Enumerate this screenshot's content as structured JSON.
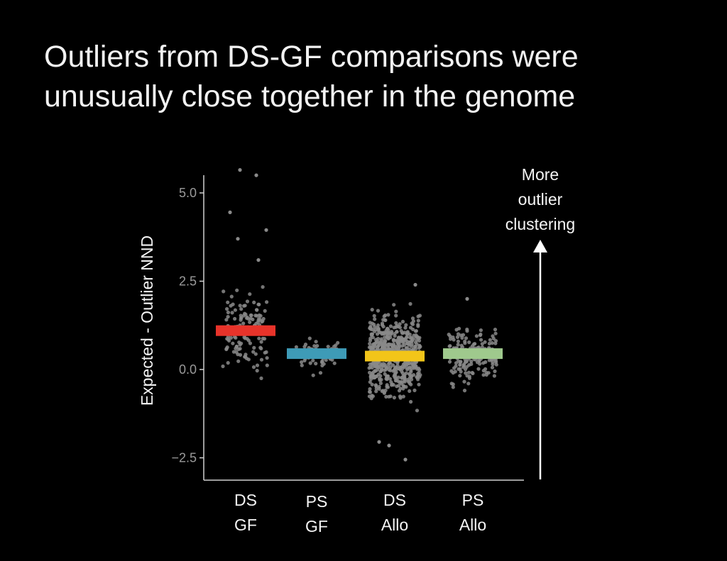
{
  "title": {
    "line1": "Outliers from DS-GF comparisons were",
    "line2": "unusually close together in the genome"
  },
  "annotation": {
    "lines": [
      "More",
      "outlier",
      "clustering"
    ],
    "arrow": "up"
  },
  "chart_data": {
    "type": "scatter",
    "subtype": "jittered strip plot with median bars",
    "ylabel": "Expected - Outlier NND",
    "xlabel": "",
    "ylim": [
      -2.8,
      5.6
    ],
    "yticks": [
      -2.5,
      0.0,
      2.5,
      5.0
    ],
    "ytick_labels": [
      "−2.5",
      "0.0",
      "2.5",
      "5.0"
    ],
    "grid": false,
    "categories": [
      {
        "id": "DS-GF",
        "label": [
          "DS",
          "GF"
        ],
        "bar_value": 1.1,
        "bar_color": "#e8332a",
        "n_points": 150,
        "range": [
          -0.7,
          5.7
        ],
        "highlights": [
          5.65,
          5.5,
          4.45,
          3.95,
          3.7,
          3.1
        ]
      },
      {
        "id": "PS-GF",
        "label": [
          "PS",
          "GF"
        ],
        "bar_value": 0.45,
        "bar_color": "#3e9bb7",
        "n_points": 60,
        "range": [
          -0.25,
          1.25
        ],
        "highlights": []
      },
      {
        "id": "DS-Allo",
        "label": [
          "DS",
          "Allo"
        ],
        "bar_value": 0.38,
        "bar_color": "#f2c519",
        "n_points": 650,
        "range": [
          -2.6,
          2.5
        ],
        "highlights": [
          -2.15,
          -2.55,
          -2.05,
          2.4
        ]
      },
      {
        "id": "PS-Allo",
        "label": [
          "PS",
          "Allo"
        ],
        "bar_value": 0.45,
        "bar_color": "#9fc98d",
        "n_points": 180,
        "range": [
          -0.65,
          2.05
        ],
        "highlights": [
          2.0
        ]
      }
    ],
    "point_color": "#8a8a8a",
    "legend": "none"
  }
}
